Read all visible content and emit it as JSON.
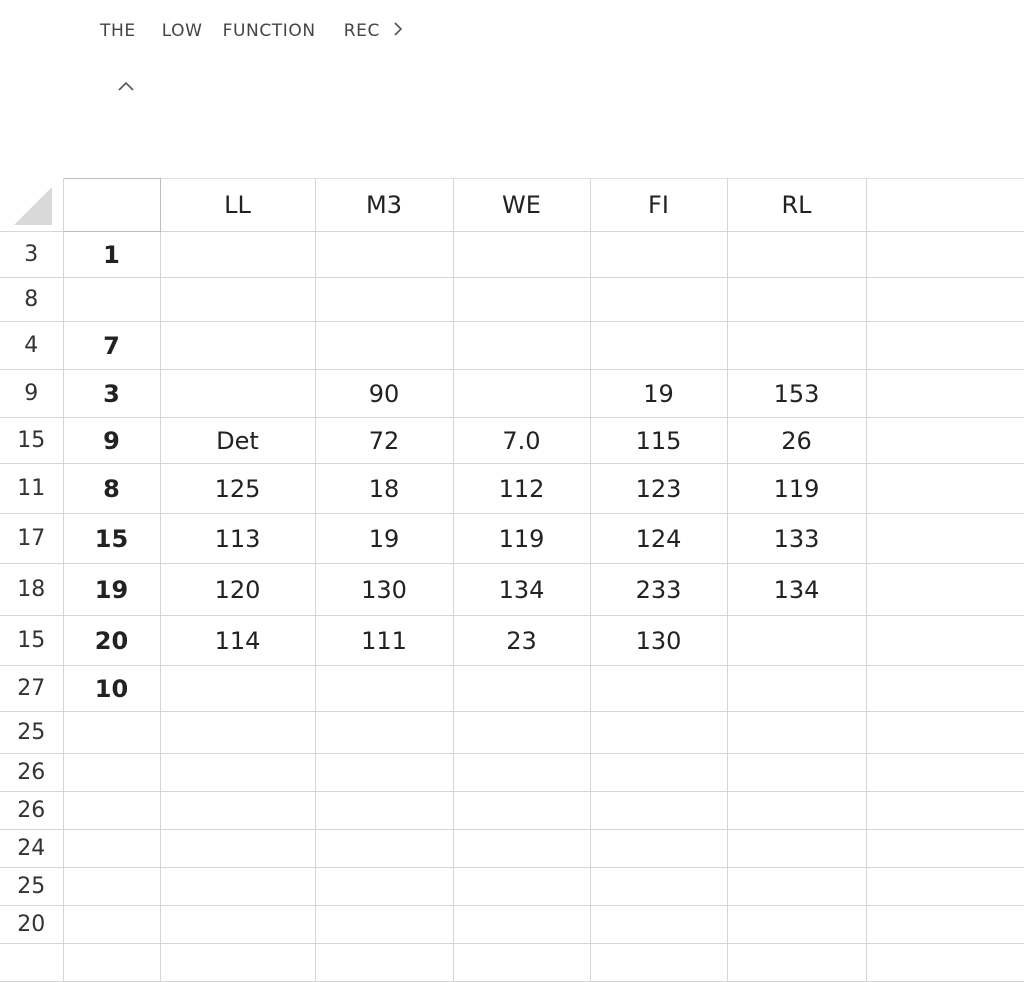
{
  "ribbon": {
    "tabs": [
      "THE",
      "LOW",
      "FUNCTION",
      "REC"
    ],
    "more_icon": "chevron-right-icon",
    "collapse_icon": "chevron-up-icon"
  },
  "sheet": {
    "columns": [
      "",
      "LL",
      "M3",
      "WE",
      "FI",
      "RL",
      ""
    ],
    "rows": [
      {
        "num": "3",
        "cells": [
          "1",
          "",
          "",
          "",
          "",
          ""
        ]
      },
      {
        "num": "8",
        "cells": [
          "",
          "",
          "",
          "",
          "",
          ""
        ]
      },
      {
        "num": "4",
        "cells": [
          "7",
          "",
          "",
          "",
          "",
          ""
        ]
      },
      {
        "num": "9",
        "cells": [
          "3",
          "",
          "90",
          "",
          "19",
          "153"
        ]
      },
      {
        "num": "15",
        "cells": [
          "9",
          "Det",
          "72",
          "7.0",
          "115",
          "26"
        ]
      },
      {
        "num": "11",
        "cells": [
          "8",
          "125",
          "18",
          "112",
          "123",
          "119"
        ]
      },
      {
        "num": "17",
        "cells": [
          "15",
          "113",
          "19",
          "119",
          "124",
          "133"
        ]
      },
      {
        "num": "18",
        "cells": [
          "19",
          "120",
          "130",
          "134",
          "233",
          "134"
        ]
      },
      {
        "num": "15",
        "cells": [
          "20",
          "114",
          "111",
          "23",
          "130",
          ""
        ]
      },
      {
        "num": "27",
        "cells": [
          "10",
          "",
          "",
          "",
          "",
          ""
        ]
      },
      {
        "num": "25",
        "cells": [
          "",
          "",
          "",
          "",
          "",
          ""
        ]
      },
      {
        "num": "26",
        "cells": [
          "",
          "",
          "",
          "",
          "",
          ""
        ]
      },
      {
        "num": "26",
        "cells": [
          "",
          "",
          "",
          "",
          "",
          ""
        ]
      },
      {
        "num": "24",
        "cells": [
          "",
          "",
          "",
          "",
          "",
          ""
        ]
      },
      {
        "num": "25",
        "cells": [
          "",
          "",
          "",
          "",
          "",
          ""
        ]
      },
      {
        "num": "20",
        "cells": [
          "",
          "",
          "",
          "",
          "",
          ""
        ]
      },
      {
        "num": "",
        "cells": [
          "",
          "",
          "",
          "",
          "",
          ""
        ]
      }
    ]
  }
}
